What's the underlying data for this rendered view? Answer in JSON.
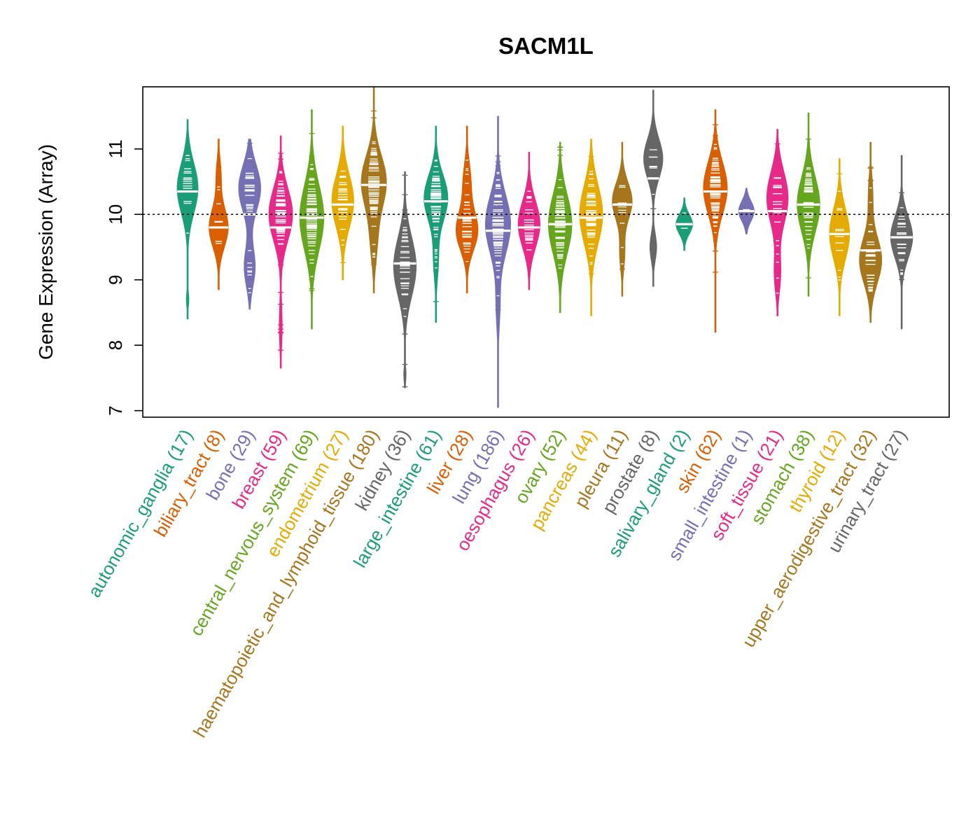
{
  "chart_data": {
    "type": "violin",
    "title": "SACM1L",
    "ylabel": "Gene Expression (Array)",
    "xlabel": "",
    "ylim": [
      6.9,
      11.95
    ],
    "yticks": [
      7,
      8,
      9,
      10,
      11
    ],
    "reference_line": 10,
    "categories": [
      {
        "name": "autonomic_ganglia",
        "n": 17,
        "label": "autonomic_ganglia (17)",
        "color": "#1b9e77",
        "median": 10.35,
        "min": 8.4,
        "max": 11.45,
        "modes": [
          {
            "c": 10.4,
            "s": 0.38,
            "w": 1.0
          },
          {
            "c": 8.7,
            "s": 0.12,
            "w": 0.12
          }
        ]
      },
      {
        "name": "biliary_tract",
        "n": 8,
        "label": "biliary_tract (8)",
        "color": "#d95f02",
        "median": 9.8,
        "min": 8.85,
        "max": 11.15,
        "modes": [
          {
            "c": 9.8,
            "s": 0.3,
            "w": 1.0
          },
          {
            "c": 10.6,
            "s": 0.25,
            "w": 0.25
          }
        ]
      },
      {
        "name": "bone",
        "n": 29,
        "label": "bone (29)",
        "color": "#7570b3",
        "median": 10.0,
        "min": 8.55,
        "max": 11.15,
        "modes": [
          {
            "c": 10.4,
            "s": 0.35,
            "w": 0.9
          },
          {
            "c": 9.2,
            "s": 0.3,
            "w": 0.45
          }
        ]
      },
      {
        "name": "breast",
        "n": 59,
        "label": "breast (59)",
        "color": "#e7298a",
        "median": 9.8,
        "min": 7.65,
        "max": 11.2,
        "modes": [
          {
            "c": 10.0,
            "s": 0.4,
            "w": 1.0
          },
          {
            "c": 8.3,
            "s": 0.35,
            "w": 0.12
          }
        ]
      },
      {
        "name": "central_nervous_system",
        "n": 69,
        "label": "central_nervous_system (69)",
        "color": "#66a61e",
        "median": 9.95,
        "min": 8.25,
        "max": 11.6,
        "modes": [
          {
            "c": 9.95,
            "s": 0.5,
            "w": 1.0
          }
        ]
      },
      {
        "name": "endometrium",
        "n": 27,
        "label": "endometrium (27)",
        "color": "#e6ab02",
        "median": 10.15,
        "min": 9.0,
        "max": 11.35,
        "modes": [
          {
            "c": 10.2,
            "s": 0.4,
            "w": 1.0
          }
        ]
      },
      {
        "name": "haematopoietic_and_lymphoid_tissue",
        "n": 180,
        "label": "haematopoietic_and_lymphoid_tissue (180)",
        "color": "#a6761d",
        "median": 10.45,
        "min": 8.8,
        "max": 11.95,
        "modes": [
          {
            "c": 10.5,
            "s": 0.4,
            "w": 1.0
          },
          {
            "c": 9.6,
            "s": 0.35,
            "w": 0.25
          }
        ]
      },
      {
        "name": "kidney",
        "n": 36,
        "label": "kidney (36)",
        "color": "#666666",
        "median": 9.25,
        "min": 7.35,
        "max": 10.65,
        "modes": [
          {
            "c": 9.2,
            "s": 0.45,
            "w": 1.0
          },
          {
            "c": 7.55,
            "s": 0.12,
            "w": 0.1
          }
        ]
      },
      {
        "name": "large_intestine",
        "n": 61,
        "label": "large_intestine (61)",
        "color": "#1b9e77",
        "median": 10.2,
        "min": 8.35,
        "max": 11.35,
        "modes": [
          {
            "c": 10.25,
            "s": 0.35,
            "w": 1.0
          },
          {
            "c": 9.3,
            "s": 0.3,
            "w": 0.2
          }
        ]
      },
      {
        "name": "liver",
        "n": 28,
        "label": "liver (28)",
        "color": "#d95f02",
        "median": 9.95,
        "min": 8.8,
        "max": 11.35,
        "modes": [
          {
            "c": 9.75,
            "s": 0.3,
            "w": 1.0
          },
          {
            "c": 10.5,
            "s": 0.3,
            "w": 0.35
          }
        ]
      },
      {
        "name": "lung",
        "n": 186,
        "label": "lung (186)",
        "color": "#7570b3",
        "median": 9.75,
        "min": 7.05,
        "max": 11.5,
        "modes": [
          {
            "c": 9.85,
            "s": 0.45,
            "w": 1.0
          },
          {
            "c": 8.6,
            "s": 0.35,
            "w": 0.15
          }
        ]
      },
      {
        "name": "oesophagus",
        "n": 26,
        "label": "oesophagus (26)",
        "color": "#e7298a",
        "median": 9.8,
        "min": 8.85,
        "max": 10.95,
        "modes": [
          {
            "c": 9.85,
            "s": 0.35,
            "w": 1.0
          }
        ]
      },
      {
        "name": "ovary",
        "n": 52,
        "label": "ovary (52)",
        "color": "#66a61e",
        "median": 9.85,
        "min": 8.5,
        "max": 11.1,
        "modes": [
          {
            "c": 9.85,
            "s": 0.45,
            "w": 1.0
          }
        ]
      },
      {
        "name": "pancreas",
        "n": 44,
        "label": "pancreas (44)",
        "color": "#e6ab02",
        "median": 9.95,
        "min": 8.45,
        "max": 11.15,
        "modes": [
          {
            "c": 10.0,
            "s": 0.45,
            "w": 1.0
          }
        ]
      },
      {
        "name": "pleura",
        "n": 11,
        "label": "pleura (11)",
        "color": "#a6761d",
        "median": 10.15,
        "min": 8.75,
        "max": 11.1,
        "modes": [
          {
            "c": 10.2,
            "s": 0.28,
            "w": 1.0
          },
          {
            "c": 9.4,
            "s": 0.25,
            "w": 0.25
          }
        ]
      },
      {
        "name": "prostate",
        "n": 8,
        "label": "prostate (8)",
        "color": "#666666",
        "median": 10.55,
        "min": 8.9,
        "max": 11.9,
        "modes": [
          {
            "c": 10.85,
            "s": 0.3,
            "w": 1.0
          },
          {
            "c": 9.5,
            "s": 0.2,
            "w": 0.35
          }
        ]
      },
      {
        "name": "salivary_gland",
        "n": 2,
        "label": "salivary_gland (2)",
        "color": "#1b9e77",
        "median": 9.85,
        "min": 9.45,
        "max": 10.25,
        "modes": [
          {
            "c": 9.85,
            "s": 0.15,
            "w": 1.0
          }
        ]
      },
      {
        "name": "skin",
        "n": 62,
        "label": "skin (62)",
        "color": "#d95f02",
        "median": 10.35,
        "min": 8.2,
        "max": 11.6,
        "modes": [
          {
            "c": 10.4,
            "s": 0.4,
            "w": 1.0
          }
        ]
      },
      {
        "name": "small_intestine",
        "n": 1,
        "label": "small_intestine (1)",
        "color": "#7570b3",
        "median": 10.05,
        "min": 9.7,
        "max": 10.4,
        "modes": [
          {
            "c": 10.05,
            "s": 0.15,
            "w": 1.0
          }
        ]
      },
      {
        "name": "soft_tissue",
        "n": 21,
        "label": "soft_tissue (21)",
        "color": "#e7298a",
        "median": 10.05,
        "min": 8.45,
        "max": 11.3,
        "modes": [
          {
            "c": 10.25,
            "s": 0.4,
            "w": 1.0
          },
          {
            "c": 9.1,
            "s": 0.3,
            "w": 0.3
          }
        ]
      },
      {
        "name": "stomach",
        "n": 38,
        "label": "stomach (38)",
        "color": "#66a61e",
        "median": 10.15,
        "min": 8.75,
        "max": 11.55,
        "modes": [
          {
            "c": 10.15,
            "s": 0.42,
            "w": 1.0
          }
        ]
      },
      {
        "name": "thyroid",
        "n": 12,
        "label": "thyroid (12)",
        "color": "#e6ab02",
        "median": 9.7,
        "min": 8.45,
        "max": 10.85,
        "modes": [
          {
            "c": 9.7,
            "s": 0.38,
            "w": 1.0
          }
        ]
      },
      {
        "name": "upper_aerodigestive_tract",
        "n": 32,
        "label": "upper_aerodigestive_tract (32)",
        "color": "#a6761d",
        "median": 9.45,
        "min": 8.35,
        "max": 11.1,
        "modes": [
          {
            "c": 9.3,
            "s": 0.35,
            "w": 1.0
          },
          {
            "c": 10.3,
            "s": 0.3,
            "w": 0.2
          }
        ]
      },
      {
        "name": "urinary_tract",
        "n": 27,
        "label": "urinary_tract (27)",
        "color": "#666666",
        "median": 9.65,
        "min": 8.25,
        "max": 10.9,
        "modes": [
          {
            "c": 9.65,
            "s": 0.32,
            "w": 1.0
          }
        ]
      }
    ]
  }
}
